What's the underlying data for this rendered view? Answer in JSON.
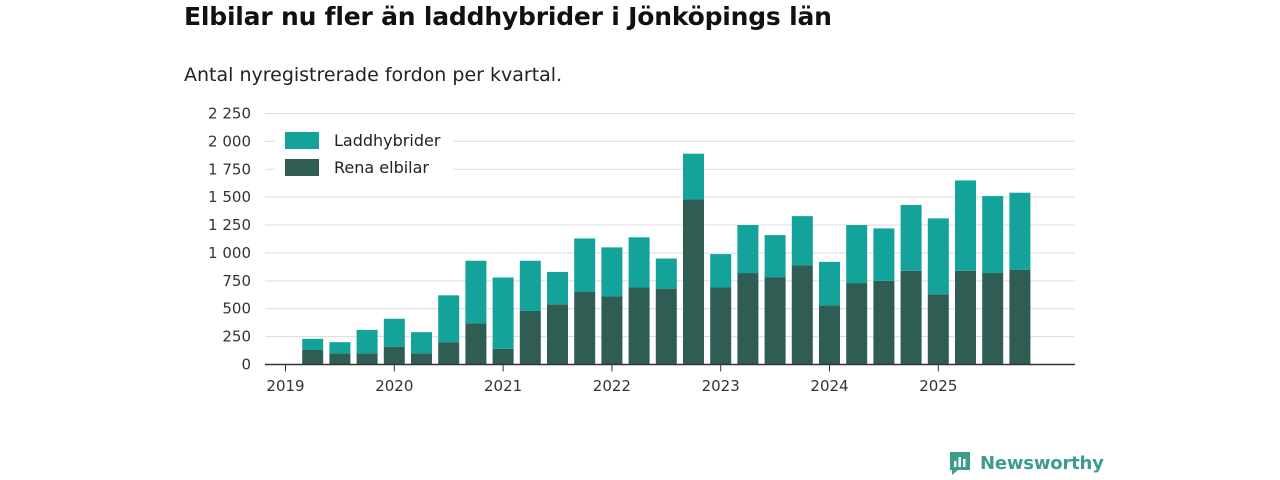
{
  "header": {
    "title": "Elbilar nu fler än laddhybrider i Jönköpings län",
    "subtitle": "Antal nyregistrerade fordon per kvartal."
  },
  "branding": {
    "name": "Newsworthy"
  },
  "colors": {
    "phev": "#14a39b",
    "bev": "#2f5d54",
    "grid": "#dcdcdc",
    "axis": "#333333",
    "brand": "#3d9c8c"
  },
  "chart_data": {
    "type": "bar",
    "stacked": true,
    "title": "Elbilar nu fler än laddhybrider i Jönköpings län",
    "subtitle": "Antal nyregistrerade fordon per kvartal.",
    "xlabel": "",
    "ylabel": "",
    "ylim": [
      0,
      2250
    ],
    "yticks": [
      0,
      250,
      500,
      750,
      1000,
      1250,
      1500,
      1750,
      2000,
      2250
    ],
    "ytick_labels": [
      "0",
      "250",
      "500",
      "750",
      "1 000",
      "1 250",
      "1 500",
      "1 750",
      "2 000",
      "2 250"
    ],
    "xtick_labels": [
      "2019",
      "2020",
      "2021",
      "2022",
      "2023",
      "2024",
      "2025"
    ],
    "categories": [
      "2019 Q2",
      "2019 Q3",
      "2019 Q4",
      "2020 Q1",
      "2020 Q2",
      "2020 Q3",
      "2020 Q4",
      "2021 Q1",
      "2021 Q2",
      "2021 Q3",
      "2021 Q4",
      "2022 Q1",
      "2022 Q2",
      "2022 Q3",
      "2022 Q4",
      "2023 Q1",
      "2023 Q2",
      "2023 Q3",
      "2023 Q4",
      "2024 Q1",
      "2024 Q2",
      "2024 Q3",
      "2024 Q4",
      "2025 Q1",
      "2025 Q2",
      "2025 Q3",
      "2025 Q4"
    ],
    "series": [
      {
        "name": "Rena elbilar",
        "values": [
          130,
          100,
          100,
          160,
          100,
          200,
          370,
          140,
          480,
          540,
          650,
          610,
          690,
          680,
          1480,
          690,
          820,
          780,
          890,
          530,
          730,
          750,
          840,
          630,
          840,
          820,
          850
        ]
      },
      {
        "name": "Laddhybrider",
        "values": [
          100,
          100,
          210,
          250,
          190,
          420,
          560,
          640,
          450,
          290,
          480,
          440,
          450,
          270,
          410,
          300,
          430,
          380,
          440,
          390,
          520,
          470,
          590,
          680,
          810,
          690,
          690
        ]
      }
    ],
    "legend": {
      "placement": "top-left",
      "entries": [
        "Laddhybrider",
        "Rena elbilar"
      ]
    }
  }
}
